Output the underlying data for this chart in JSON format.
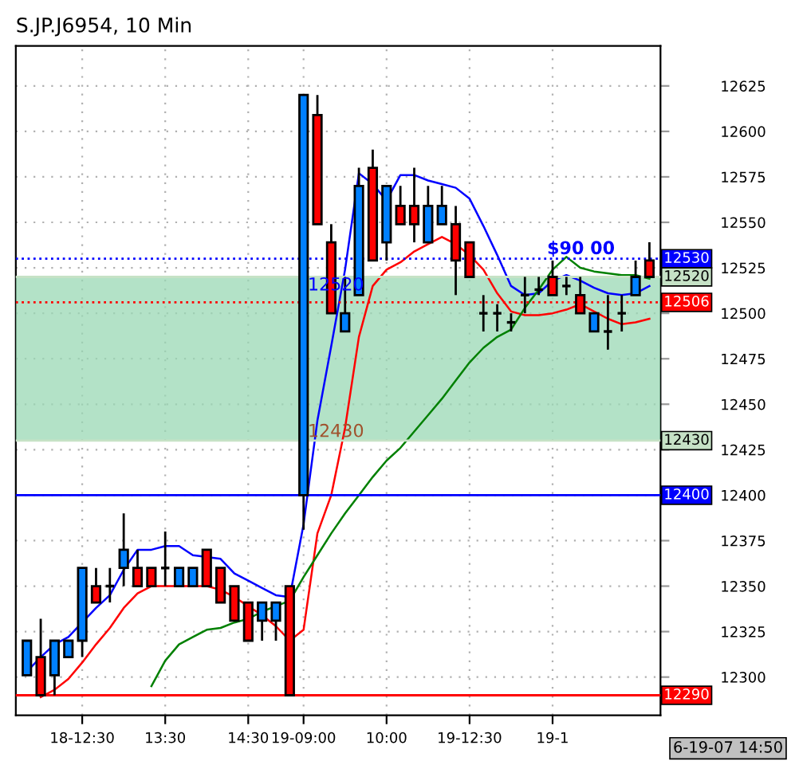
{
  "chart_data": {
    "type": "candlestick",
    "title": "S.JP.J6954, 10 Min",
    "categories": [
      null,
      null,
      null,
      null,
      "18-12:30",
      null,
      null,
      null,
      null,
      null,
      "13:30",
      null,
      null,
      null,
      null,
      null,
      "14:30",
      null,
      null,
      null,
      "19-09:00",
      null,
      null,
      null,
      null,
      null,
      "10:00",
      null,
      null,
      null,
      null,
      null,
      "19-12:30",
      null,
      null,
      null,
      null,
      null,
      "19-1",
      null,
      null,
      null,
      null,
      null,
      null,
      null
    ],
    "ohlc": [
      [
        12301,
        12320,
        12301,
        12320
      ],
      [
        12311,
        12332,
        12290,
        12290
      ],
      [
        12301,
        12320,
        12290,
        12320
      ],
      [
        12311,
        12320,
        12311,
        12320
      ],
      [
        12320,
        12360,
        12311,
        12360
      ],
      [
        12350,
        12360,
        12341,
        12341
      ],
      [
        12350,
        12360,
        12341,
        12350
      ],
      [
        12360,
        12390,
        12350,
        12370
      ],
      [
        12360,
        12370,
        12350,
        12350
      ],
      [
        12360,
        12360,
        12350,
        12350
      ],
      [
        12360,
        12380,
        12350,
        12360
      ],
      [
        12350,
        12360,
        12350,
        12360
      ],
      [
        12350,
        12360,
        12350,
        12360
      ],
      [
        12370,
        12370,
        12350,
        12350
      ],
      [
        12360,
        12360,
        12341,
        12341
      ],
      [
        12350,
        12350,
        12331,
        12331
      ],
      [
        12341,
        12341,
        12320,
        12320
      ],
      [
        12331,
        12341,
        12320,
        12341
      ],
      [
        12331,
        12341,
        12320,
        12341
      ],
      [
        12350,
        12350,
        12290,
        12290
      ],
      [
        12400,
        12620,
        12381,
        12620
      ],
      [
        12609,
        12620,
        12549,
        12549
      ],
      [
        12539,
        12549,
        12500,
        12500
      ],
      [
        12490,
        12520,
        12490,
        12500
      ],
      [
        12510,
        12580,
        12510,
        12570
      ],
      [
        12580,
        12590,
        12529,
        12529
      ],
      [
        12539,
        12570,
        12529,
        12570
      ],
      [
        12559,
        12570,
        12549,
        12549
      ],
      [
        12559,
        12580,
        12539,
        12549
      ],
      [
        12539,
        12570,
        12539,
        12559
      ],
      [
        12549,
        12570,
        12549,
        12559
      ],
      [
        12549,
        12559,
        12510,
        12529
      ],
      [
        12539,
        12539,
        12520,
        12520
      ],
      [
        12500,
        12510,
        12490,
        12500
      ],
      [
        12500,
        12505,
        12490,
        12500
      ],
      [
        12495,
        12500,
        12490,
        12495
      ],
      [
        12510,
        12520,
        12500,
        12510
      ],
      [
        12513,
        12520,
        12510,
        12513
      ],
      [
        12520,
        12529,
        12510,
        12510
      ],
      [
        12515,
        12520,
        12510,
        12515
      ],
      [
        12510,
        12520,
        12500,
        12500
      ],
      [
        12490,
        12500,
        12490,
        12500
      ],
      [
        12490,
        12510,
        12480,
        12490
      ],
      [
        12500,
        12510,
        12490,
        12500
      ],
      [
        12510,
        12529,
        12510,
        12520
      ],
      [
        12529,
        12539,
        12520,
        12520
      ]
    ],
    "colors": [
      "#0080ff",
      "#ff0000",
      "#0080ff",
      "#0080ff",
      "#0080ff",
      "#ff0000",
      "#000000",
      "#0080ff",
      "#ff0000",
      "#ff0000",
      "#000000",
      "#0080ff",
      "#0080ff",
      "#ff0000",
      "#ff0000",
      "#ff0000",
      "#ff0000",
      "#0080ff",
      "#0080ff",
      "#ff0000",
      "#0080ff",
      "#ff0000",
      "#ff0000",
      "#0080ff",
      "#0080ff",
      "#ff0000",
      "#0080ff",
      "#ff0000",
      "#ff0000",
      "#0080ff",
      "#0080ff",
      "#ff0000",
      "#ff0000",
      "#000000",
      "#000000",
      "#000000",
      "#000000",
      "#000000",
      "#ff0000",
      "#000000",
      "#ff0000",
      "#0080ff",
      "#000000",
      "#000000",
      "#0080ff",
      "#ff0000"
    ],
    "series": [
      {
        "type": "line",
        "color": "#0000ff",
        "values": [
          12303,
          12311,
          12318,
          12322,
          12330,
          12338,
          12345,
          12359,
          12370,
          12370,
          12372,
          12372,
          12367,
          12366,
          12365,
          12357,
          12353,
          12349,
          12345,
          12344,
          12384,
          12441,
          12482,
          12524,
          12577,
          12571,
          12562,
          12576,
          12576,
          12573,
          12571,
          12569,
          12563,
          12548,
          12532,
          12515,
          12510,
          12511,
          12518,
          12521,
          12518,
          12514,
          12511,
          12510,
          12511,
          12515
        ]
      },
      {
        "type": "line",
        "color": "#ff0000",
        "values": [
          null,
          12289,
          12293,
          12299,
          12308,
          12318,
          12327,
          12338,
          12346,
          12350,
          12350,
          12350,
          12350,
          12350,
          12348,
          12344,
          12339,
          12334,
          12328,
          12320,
          12326,
          12379,
          12400,
          12437,
          12487,
          12515,
          12524,
          12528,
          12534,
          12538,
          12542,
          12538,
          12532,
          12524,
          12511,
          12501,
          12499,
          12499,
          12500,
          12502,
          12505,
          12501,
          12497,
          12494,
          12495,
          12497
        ]
      },
      {
        "type": "line",
        "color": "#008000",
        "values": [
          null,
          null,
          null,
          null,
          null,
          null,
          null,
          null,
          null,
          12295,
          12309,
          12318,
          12322,
          12326,
          12327,
          12330,
          12332,
          12336,
          12339,
          12342,
          12355,
          12367,
          12379,
          12390,
          12400,
          12410,
          12419,
          12426,
          12435,
          12444,
          12453,
          12463,
          12473,
          12481,
          12487,
          12491,
          12503,
          12513,
          12524,
          12531,
          12525,
          12523,
          12522,
          12521,
          12521,
          12519
        ]
      }
    ],
    "ylim": [
      12279,
      12647
    ],
    "yticks": [
      12300,
      12325,
      12350,
      12375,
      12400,
      12425,
      12450,
      12475,
      12500,
      12525,
      12550,
      12575,
      12600,
      12625
    ],
    "grid": true,
    "bands": [
      {
        "axis": "y",
        "from": 12430,
        "to": 12520,
        "color": "#9ad8b4"
      }
    ],
    "ref_lines": [
      {
        "axis": "y",
        "value": 12530,
        "label": "12530",
        "color": "#0000ff",
        "line_style": "dotted"
      },
      {
        "axis": "y",
        "value": 12520,
        "label": "12520",
        "color": "#c6e2c6",
        "line_style": "solid"
      },
      {
        "axis": "y",
        "value": 12506,
        "label": "12506",
        "color": "#ff0000",
        "line_style": "dotted"
      },
      {
        "axis": "y",
        "value": 12430,
        "label": "12430",
        "color": "#c6e2c6",
        "line_style": "solid"
      },
      {
        "axis": "y",
        "value": 12400,
        "label": "12400",
        "color": "#0000ff",
        "line_style": "solid"
      },
      {
        "axis": "y",
        "value": 12290,
        "label": "12290",
        "color": "#ff0000",
        "line_style": "solid"
      }
    ],
    "annotations": [
      {
        "text": "12520",
        "y": 12520
      },
      {
        "text": "12430",
        "y": 12430
      },
      {
        "text": "$90 00",
        "y": 12522
      },
      "6-19-07 14:50"
    ]
  }
}
